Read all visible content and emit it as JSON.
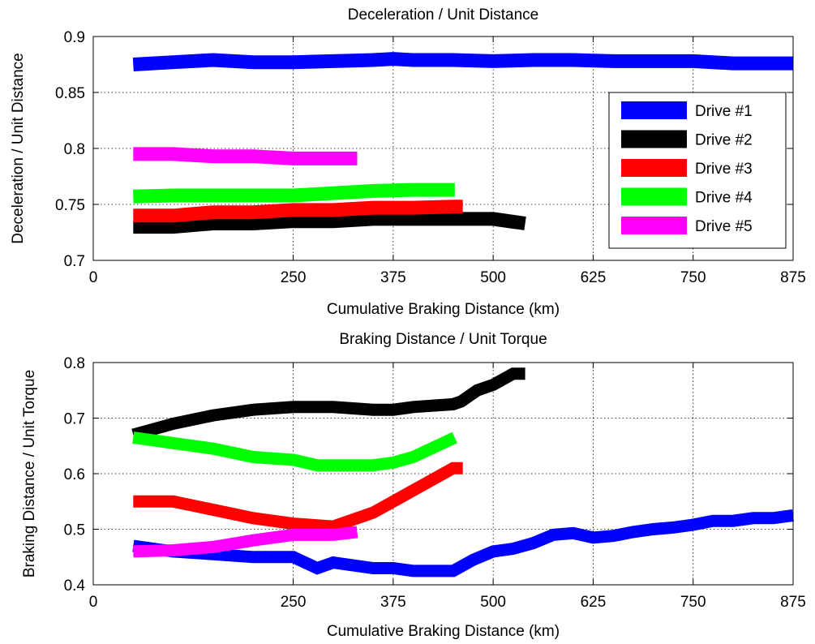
{
  "chart_data": [
    {
      "type": "line",
      "title": "Deceleration / Unit Distance",
      "xlabel": "Cumulative Braking Distance (km)",
      "ylabel": "Deceleration / Unit Distance",
      "xlim": [
        0,
        875
      ],
      "ylim": [
        0.7,
        0.9
      ],
      "xticks": [
        0,
        250,
        375,
        500,
        625,
        750,
        875
      ],
      "yticks": [
        0.7,
        0.75,
        0.8,
        0.85,
        0.9
      ],
      "ytick_labels": [
        "0.7",
        "0.75",
        "0.8",
        "0.85",
        "0.9"
      ],
      "grid": true,
      "legend": "right",
      "series": [
        {
          "name": "Drive #1",
          "color": "#0000ff",
          "x": [
            50,
            100,
            150,
            200,
            250,
            300,
            350,
            375,
            400,
            450,
            500,
            550,
            600,
            650,
            700,
            750,
            800,
            875
          ],
          "y": [
            0.875,
            0.877,
            0.879,
            0.877,
            0.877,
            0.878,
            0.879,
            0.88,
            0.879,
            0.879,
            0.878,
            0.879,
            0.879,
            0.878,
            0.878,
            0.878,
            0.876,
            0.876
          ]
        },
        {
          "name": "Drive #2",
          "color": "#000000",
          "x": [
            50,
            100,
            150,
            200,
            250,
            300,
            350,
            400,
            450,
            500,
            540
          ],
          "y": [
            0.73,
            0.73,
            0.733,
            0.733,
            0.735,
            0.735,
            0.737,
            0.737,
            0.737,
            0.737,
            0.733
          ]
        },
        {
          "name": "Drive #3",
          "color": "#ff0000",
          "x": [
            50,
            100,
            150,
            200,
            250,
            300,
            350,
            400,
            450,
            462
          ],
          "y": [
            0.74,
            0.74,
            0.743,
            0.743,
            0.745,
            0.745,
            0.747,
            0.747,
            0.748,
            0.748
          ]
        },
        {
          "name": "Drive #4",
          "color": "#00ff00",
          "x": [
            50,
            100,
            150,
            200,
            250,
            300,
            350,
            400,
            450,
            452
          ],
          "y": [
            0.757,
            0.758,
            0.758,
            0.758,
            0.758,
            0.76,
            0.762,
            0.763,
            0.763,
            0.763
          ]
        },
        {
          "name": "Drive #5",
          "color": "#ff00ff",
          "x": [
            50,
            100,
            150,
            200,
            250,
            300,
            330
          ],
          "y": [
            0.795,
            0.795,
            0.793,
            0.793,
            0.791,
            0.791,
            0.791
          ]
        }
      ]
    },
    {
      "type": "line",
      "title": "Braking Distance / Unit Torque",
      "xlabel": "Cumulative Braking Distance (km)",
      "ylabel": "Braking Distance / Unit Torque",
      "xlim": [
        0,
        875
      ],
      "ylim": [
        0.4,
        0.8
      ],
      "xticks": [
        0,
        250,
        375,
        500,
        625,
        750,
        875
      ],
      "yticks": [
        0.4,
        0.5,
        0.6,
        0.7,
        0.8
      ],
      "ytick_labels": [
        "0.4",
        "0.5",
        "0.6",
        "0.7",
        "0.8"
      ],
      "grid": true,
      "series": [
        {
          "name": "Drive #1",
          "color": "#0000ff",
          "x": [
            50,
            100,
            150,
            200,
            250,
            280,
            300,
            350,
            375,
            400,
            440,
            450,
            475,
            500,
            525,
            550,
            575,
            600,
            625,
            650,
            675,
            700,
            725,
            750,
            775,
            800,
            825,
            850,
            875
          ],
          "y": [
            0.47,
            0.46,
            0.455,
            0.45,
            0.45,
            0.43,
            0.44,
            0.43,
            0.43,
            0.425,
            0.425,
            0.425,
            0.445,
            0.46,
            0.465,
            0.475,
            0.49,
            0.493,
            0.485,
            0.488,
            0.495,
            0.5,
            0.503,
            0.508,
            0.515,
            0.515,
            0.52,
            0.52,
            0.525
          ]
        },
        {
          "name": "Drive #2",
          "color": "#000000",
          "x": [
            50,
            100,
            150,
            200,
            250,
            300,
            350,
            375,
            400,
            450,
            460,
            480,
            500,
            525,
            540
          ],
          "y": [
            0.67,
            0.69,
            0.705,
            0.715,
            0.72,
            0.72,
            0.715,
            0.715,
            0.72,
            0.725,
            0.73,
            0.75,
            0.76,
            0.78,
            0.78
          ]
        },
        {
          "name": "Drive #3",
          "color": "#ff0000",
          "x": [
            50,
            100,
            150,
            200,
            250,
            300,
            350,
            375,
            400,
            450,
            462
          ],
          "y": [
            0.55,
            0.55,
            0.535,
            0.52,
            0.51,
            0.505,
            0.53,
            0.55,
            0.57,
            0.61,
            0.61
          ]
        },
        {
          "name": "Drive #4",
          "color": "#00ff00",
          "x": [
            50,
            100,
            150,
            200,
            250,
            280,
            300,
            350,
            375,
            400,
            452
          ],
          "y": [
            0.665,
            0.655,
            0.645,
            0.63,
            0.625,
            0.615,
            0.615,
            0.615,
            0.62,
            0.63,
            0.665
          ]
        },
        {
          "name": "Drive #5",
          "color": "#ff00ff",
          "x": [
            50,
            100,
            150,
            200,
            250,
            300,
            330
          ],
          "y": [
            0.46,
            0.462,
            0.468,
            0.48,
            0.49,
            0.49,
            0.495
          ]
        }
      ]
    }
  ]
}
